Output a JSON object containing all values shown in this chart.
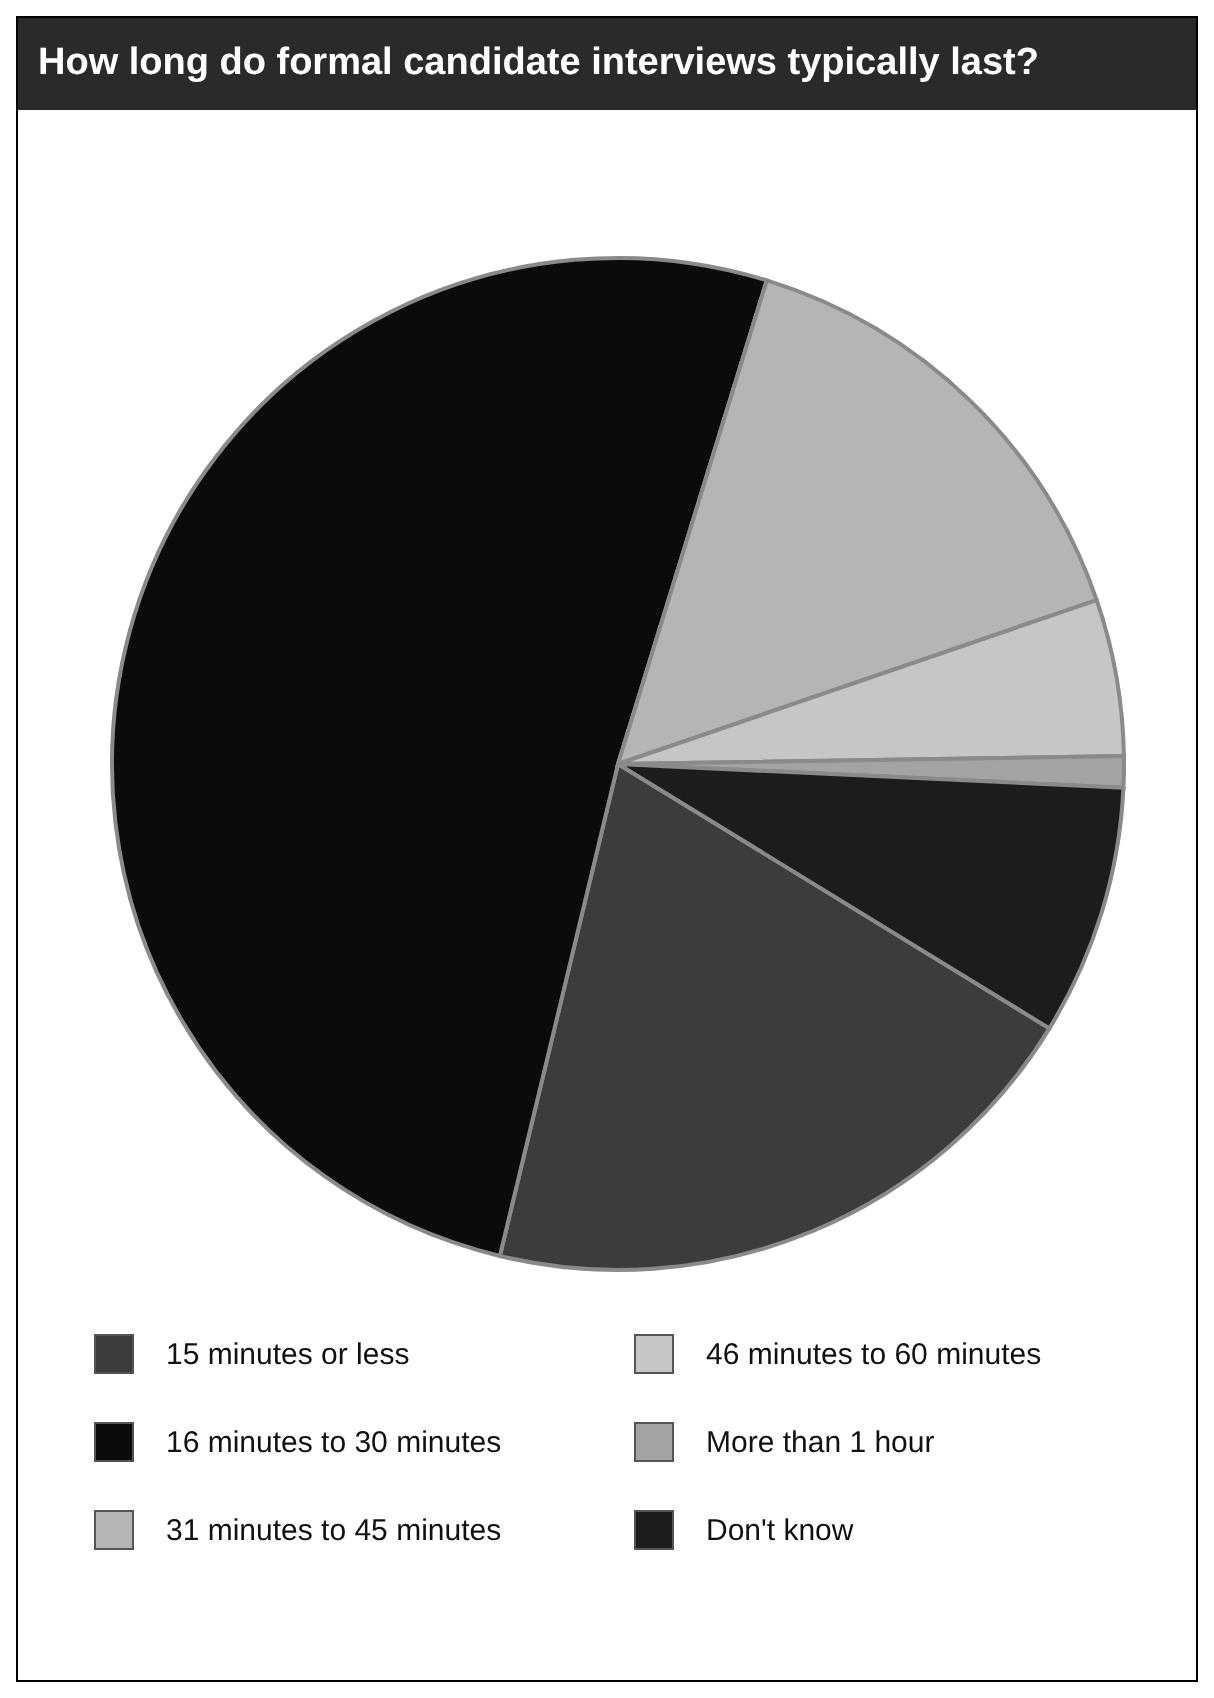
{
  "chart_data": {
    "type": "pie",
    "title": "How long do formal candidate interviews typically last?",
    "categories": [
      "15 minutes or less",
      "16 minutes to 30 minutes",
      "31 minutes to 45 minutes",
      "46 minutes to 60 minutes",
      "More than 1 hour",
      "Don't know"
    ],
    "values": [
      20,
      51,
      15,
      5,
      1,
      8
    ],
    "colors": [
      "#3c3c3c",
      "#0b0b0b",
      "#b5b5b5",
      "#c6c6c6",
      "#a3a3a3",
      "#1c1c1c"
    ],
    "legend": "bottom"
  }
}
